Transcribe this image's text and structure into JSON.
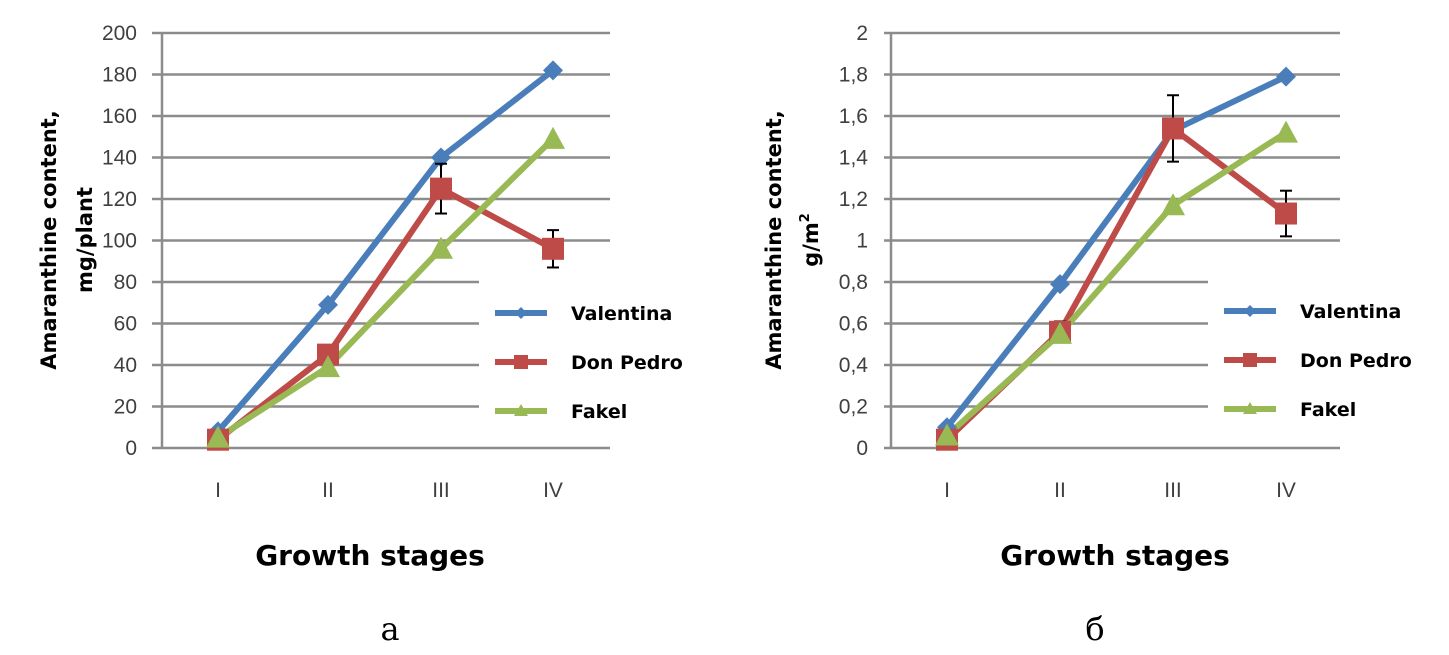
{
  "chart_data": [
    {
      "id": "a",
      "type": "line",
      "panel_label": "a",
      "title": "",
      "xlabel": "Growth stages",
      "ylabel_line1": "Amaranthine content,",
      "ylabel_line2": "mg/plant",
      "categories": [
        "I",
        "II",
        "III",
        "IV"
      ],
      "ylim": [
        0,
        200
      ],
      "yticks": [
        0,
        20,
        40,
        60,
        80,
        100,
        120,
        140,
        160,
        180,
        200
      ],
      "ytick_labels": [
        "0",
        "20",
        "40",
        "60",
        "80",
        "100",
        "120",
        "140",
        "160",
        "180",
        "200"
      ],
      "grid": true,
      "legend": "right",
      "series": [
        {
          "name": "Valentina",
          "color": "#4a7ebb",
          "marker": "diamond",
          "values": [
            8,
            69,
            140,
            182
          ],
          "errors": [
            null,
            null,
            null,
            null
          ]
        },
        {
          "name": "Don Pedro",
          "color": "#be4b48",
          "marker": "square",
          "values": [
            4,
            45,
            125,
            96
          ],
          "errors": [
            null,
            null,
            12,
            9
          ]
        },
        {
          "name": "Fakel",
          "color": "#98b954",
          "marker": "triangle",
          "values": [
            5,
            39,
            96,
            149
          ],
          "errors": [
            null,
            null,
            null,
            null
          ]
        }
      ]
    },
    {
      "id": "b",
      "type": "line",
      "panel_label": "б",
      "title": "",
      "xlabel": "Growth stages",
      "ylabel_line1": "Amaranthine content,",
      "ylabel_line2": "g/m",
      "ylabel_sup": "2",
      "categories": [
        "I",
        "II",
        "III",
        "IV"
      ],
      "ylim": [
        0,
        2
      ],
      "yticks": [
        0,
        0.2,
        0.4,
        0.6,
        0.8,
        1,
        1.2,
        1.4,
        1.6,
        1.8,
        2
      ],
      "ytick_labels": [
        "0",
        "0,2",
        "0,4",
        "0,6",
        "0,8",
        "1",
        "1,2",
        "1,4",
        "1,6",
        "1,8",
        "2"
      ],
      "grid": true,
      "legend": "right",
      "series": [
        {
          "name": "Valentina",
          "color": "#4a7ebb",
          "marker": "diamond",
          "values": [
            0.1,
            0.79,
            1.53,
            1.79
          ],
          "errors": [
            null,
            null,
            null,
            null
          ]
        },
        {
          "name": "Don Pedro",
          "color": "#be4b48",
          "marker": "square",
          "values": [
            0.04,
            0.56,
            1.54,
            1.13
          ],
          "errors": [
            null,
            0.05,
            0.16,
            0.11
          ]
        },
        {
          "name": "Fakel",
          "color": "#98b954",
          "marker": "triangle",
          "values": [
            0.06,
            0.55,
            1.17,
            1.52
          ],
          "errors": [
            null,
            null,
            null,
            null
          ]
        }
      ]
    }
  ]
}
